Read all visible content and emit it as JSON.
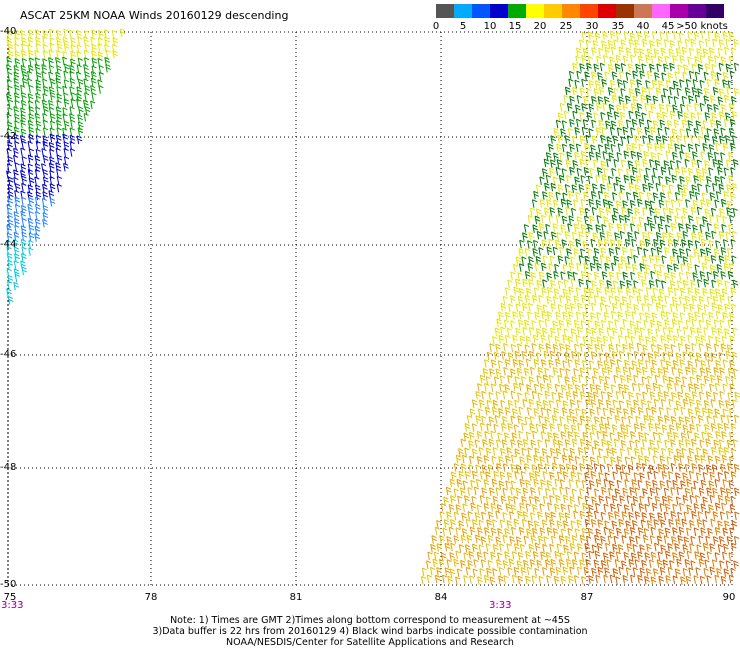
{
  "title": "ASCAT 25KM NOAA Winds 20160129 descending",
  "legend": {
    "colors": [
      "#555555",
      "#00aaff",
      "#0055ff",
      "#0000cc",
      "#00aa00",
      "#ffff00",
      "#ffcc00",
      "#ff8800",
      "#ff4400",
      "#dd0000",
      "#993300",
      "#cc7755",
      "#ff66ff",
      "#aa00aa",
      "#660099",
      "#330066"
    ],
    "labels": [
      "0",
      "5",
      "10",
      "15",
      "20",
      "25",
      "30",
      "35",
      "40",
      "45",
      ">50 knots"
    ]
  },
  "axes": {
    "lat_labels": [
      "-40",
      "-42",
      "-44",
      "-46",
      "-48",
      "-50"
    ],
    "lon_labels": [
      "75",
      "78",
      "81",
      "84",
      "87",
      "90"
    ],
    "time_labels": [
      "3:33",
      "3:33"
    ]
  },
  "notes": [
    "Note: 1) Times are GMT 2)Times along bottom correspond to measurement at ~45S",
    "3)Data buffer is 22 hrs from 20160129 4) Black wind barbs indicate possible contamination",
    "NOAA/NESDIS/Center for Satellite Applications and Research"
  ],
  "map_data": {
    "lon_range": [
      75,
      90
    ],
    "lat_range": [
      -40,
      -50
    ],
    "swath_west": {
      "description": "narrow partial swath at left edge",
      "colors": [
        "yellow",
        "green",
        "blue",
        "cyan"
      ]
    },
    "swath_east": {
      "description": "wide swath from lon 84 to 90",
      "colors": [
        "yellow",
        "green",
        "orange",
        "red"
      ]
    }
  }
}
